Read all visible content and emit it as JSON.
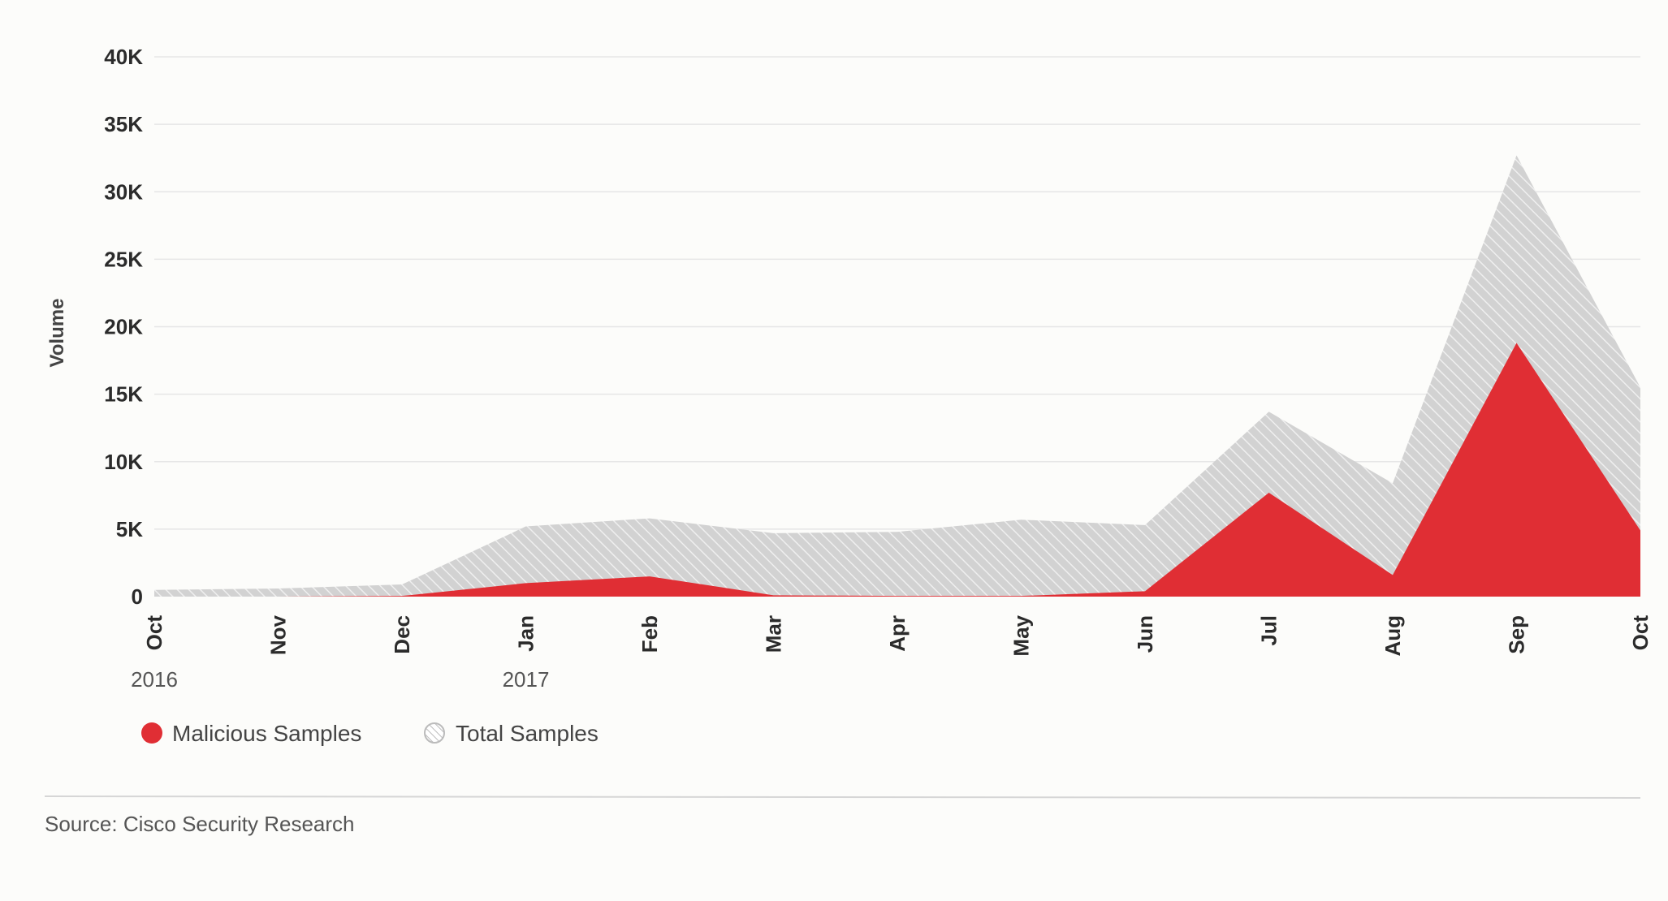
{
  "chart_data": {
    "type": "area",
    "ylabel": "Volume",
    "ylim": [
      0,
      40000
    ],
    "y_ticks": [
      "40K",
      "35K",
      "30K",
      "25K",
      "20K",
      "15K",
      "10K",
      "5K",
      "0"
    ],
    "y_tick_values": [
      40000,
      35000,
      30000,
      25000,
      20000,
      15000,
      10000,
      5000,
      0
    ],
    "categories": [
      "Oct",
      "Nov",
      "Dec",
      "Jan",
      "Feb",
      "Mar",
      "Apr",
      "May",
      "Jun",
      "Jul",
      "Aug",
      "Sep",
      "Oct"
    ],
    "year_labels": [
      {
        "category_index": 0,
        "label": "2016"
      },
      {
        "category_index": 3,
        "label": "2017"
      }
    ],
    "grid": true,
    "legend_position": "bottom-left",
    "series": [
      {
        "name": "Total Samples",
        "color": "#d4d4d4",
        "pattern": "hatched",
        "values": [
          500,
          600,
          900,
          5200,
          5800,
          4700,
          4800,
          5700,
          5300,
          13700,
          8400,
          32700,
          15500
        ]
      },
      {
        "name": "Malicious Samples",
        "color": "#e02e34",
        "values": [
          0,
          0,
          50,
          1000,
          1500,
          100,
          50,
          50,
          400,
          7700,
          1600,
          18800,
          4900
        ]
      }
    ]
  },
  "legend": {
    "items": [
      {
        "label": "Malicious Samples",
        "icon": "red-dot-icon"
      },
      {
        "label": "Total Samples",
        "icon": "hatched-dot-icon"
      }
    ]
  },
  "source": "Source: Cisco Security Research"
}
